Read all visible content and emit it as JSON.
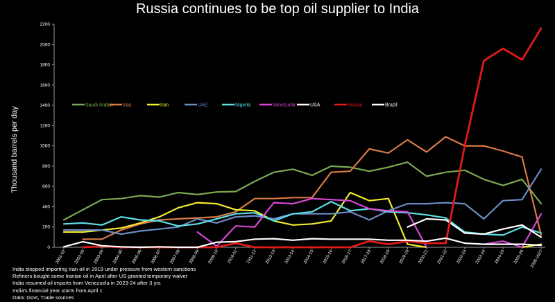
{
  "chart_data": {
    "type": "line",
    "title": "Russia continues to be top oil supplier to India",
    "ylabel": "Thousand barrels per day",
    "xlabel": "",
    "ylim": [
      0,
      2200
    ],
    "yticks": [
      0,
      200,
      400,
      600,
      800,
      1000,
      1200,
      1400,
      1600,
      1800,
      2000,
      2200
    ],
    "grid": false,
    "legend_position": "upper-left",
    "categories": [
      "2001-02",
      "2002-03",
      "2003-04",
      "2004-05",
      "2005-06",
      "2006-07",
      "2007-08",
      "2008-09",
      "2009-10",
      "2010-11",
      "2011-12",
      "2012-13",
      "2013-14",
      "2014-15",
      "2015-16",
      "2016-17",
      "2017-18",
      "2018-19",
      "2019-20",
      "2020-21",
      "2021-22",
      "2022-23",
      "2023-24",
      "2024-25",
      "2025-26",
      "2026-2027"
    ],
    "series": [
      {
        "name": "Saudi Arabia",
        "color": "#7caa4f",
        "values": [
          270,
          370,
          470,
          480,
          510,
          495,
          540,
          520,
          545,
          550,
          650,
          740,
          770,
          710,
          800,
          790,
          750,
          790,
          840,
          700,
          740,
          760,
          670,
          610,
          670,
          430
        ]
      },
      {
        "name": "Iraq",
        "color": "#d97b48",
        "values": [
          null,
          80,
          80,
          170,
          230,
          270,
          280,
          290,
          300,
          350,
          480,
          480,
          490,
          490,
          740,
          750,
          970,
          930,
          1060,
          940,
          1090,
          1000,
          1000,
          950,
          890,
          120
        ]
      },
      {
        "name": "Iran",
        "color": "#f2ee2d",
        "values": [
          150,
          150,
          170,
          190,
          240,
          300,
          390,
          440,
          430,
          370,
          360,
          260,
          220,
          230,
          260,
          540,
          460,
          480,
          30,
          0,
          null,
          null,
          null,
          null,
          0,
          30
        ]
      },
      {
        "name": "UAE",
        "color": "#6d8cc6",
        "values": [
          170,
          170,
          170,
          130,
          160,
          180,
          200,
          280,
          240,
          300,
          310,
          280,
          330,
          330,
          330,
          350,
          270,
          360,
          430,
          430,
          440,
          430,
          280,
          460,
          470,
          770
        ]
      },
      {
        "name": "Nigeria",
        "color": "#5ce0e6",
        "values": [
          230,
          240,
          220,
          300,
          270,
          260,
          210,
          230,
          280,
          330,
          340,
          260,
          330,
          350,
          450,
          360,
          380,
          350,
          340,
          320,
          290,
          150,
          130,
          120,
          200,
          140
        ]
      },
      {
        "name": "Venezuela",
        "color": "#d749d6",
        "values": [
          null,
          null,
          null,
          null,
          null,
          null,
          null,
          150,
          10,
          210,
          200,
          440,
          430,
          480,
          470,
          460,
          380,
          360,
          350,
          0,
          null,
          null,
          30,
          60,
          0,
          330
        ]
      },
      {
        "name": "USA",
        "color": "#ffffff",
        "values": [
          null,
          null,
          null,
          null,
          null,
          null,
          null,
          null,
          null,
          null,
          null,
          null,
          null,
          null,
          null,
          null,
          null,
          null,
          200,
          280,
          270,
          140,
          130,
          180,
          220,
          100
        ]
      },
      {
        "name": "Russia",
        "color": "#e31a1c",
        "values": [
          null,
          0,
          10,
          0,
          0,
          0,
          0,
          0,
          0,
          40,
          0,
          0,
          0,
          0,
          0,
          0,
          60,
          30,
          60,
          40,
          40,
          1000,
          1840,
          1960,
          1850,
          2160
        ]
      },
      {
        "name": "Brazil",
        "color": "#ffffff",
        "values": [
          5,
          55,
          15,
          5,
          0,
          5,
          0,
          0,
          50,
          55,
          80,
          85,
          70,
          85,
          80,
          80,
          80,
          70,
          70,
          60,
          90,
          40,
          30,
          30,
          30,
          20
        ]
      }
    ]
  },
  "notes": [
    "India stopped importing Iran oil in 2019 under pressure from western sanctions",
    "Refiners bought some Iranian oil in April after US granted temporary waiver",
    "India resumed oil imports from Venezuela in 2023-24 after 3 yrs",
    "India's financial year starts from April 1",
    "Data: Govt, Trade sources"
  ]
}
